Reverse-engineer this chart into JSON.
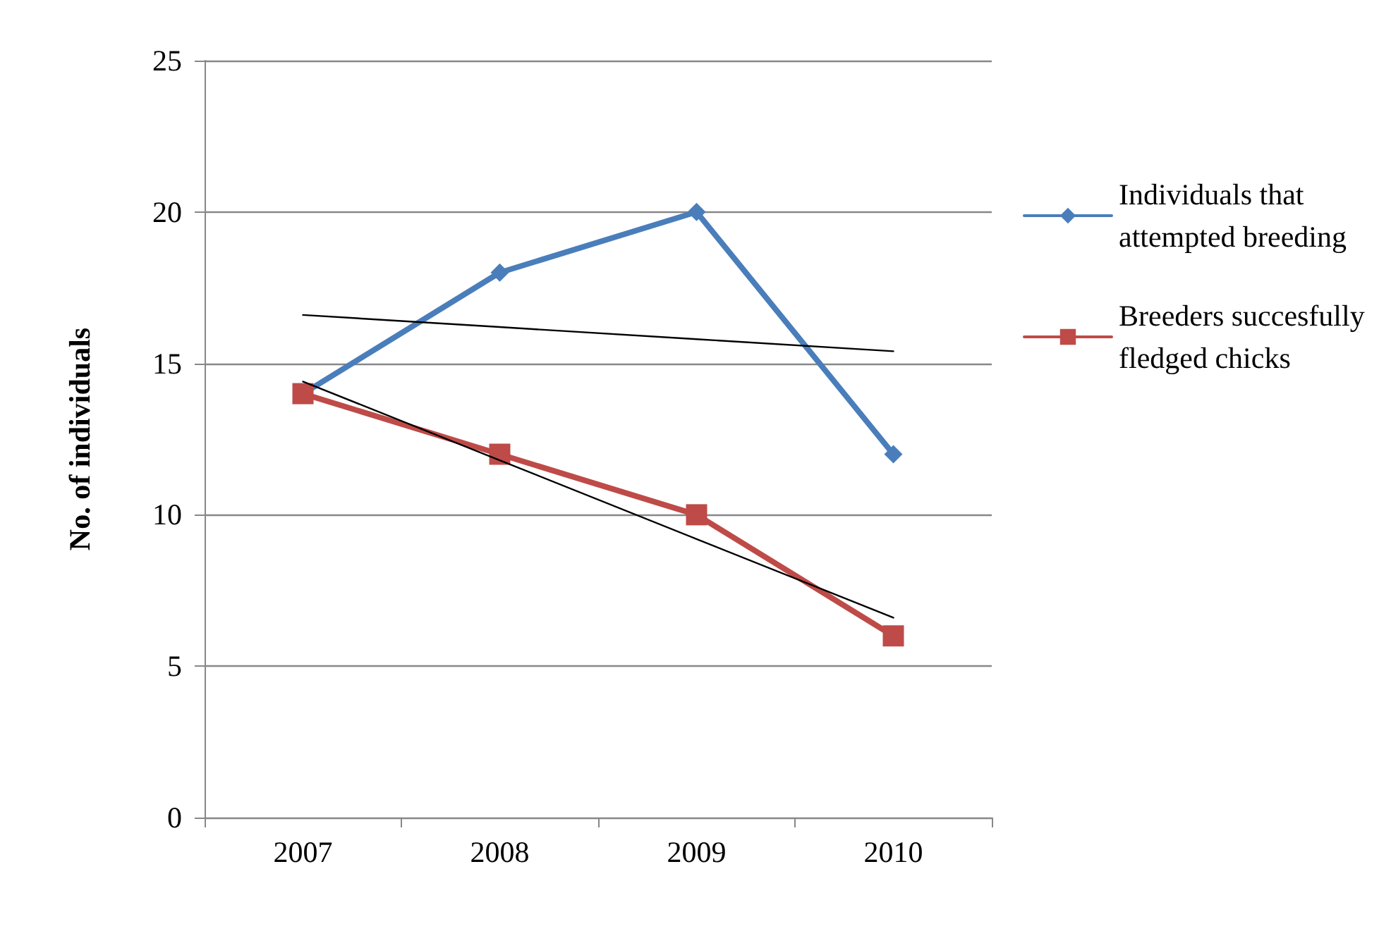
{
  "chart_data": {
    "type": "line",
    "ylabel": "No. of individuals",
    "categories": [
      "2007",
      "2008",
      "2009",
      "2010"
    ],
    "ylim": [
      0,
      25
    ],
    "yticks": [
      0,
      5,
      10,
      15,
      20,
      25
    ],
    "grid": "y",
    "legend": "right",
    "line_style": "solid",
    "series": [
      {
        "name": "Individuals that attempted breeding",
        "color": "#4a7ebb",
        "marker": "diamond",
        "values": [
          14,
          18,
          20,
          12
        ]
      },
      {
        "name": "Breeders succesfully fledged chicks",
        "color": "#be4b48",
        "marker": "square",
        "values": [
          14,
          12,
          10,
          6
        ]
      },
      {
        "type": "line",
        "color": "#000000",
        "marker": "none",
        "values": [
          16.6,
          16.2,
          15.8,
          15.4
        ]
      },
      {
        "type": "line",
        "color": "#000000",
        "marker": "none",
        "values": [
          14.4,
          11.8,
          9.2,
          6.6
        ]
      }
    ]
  }
}
